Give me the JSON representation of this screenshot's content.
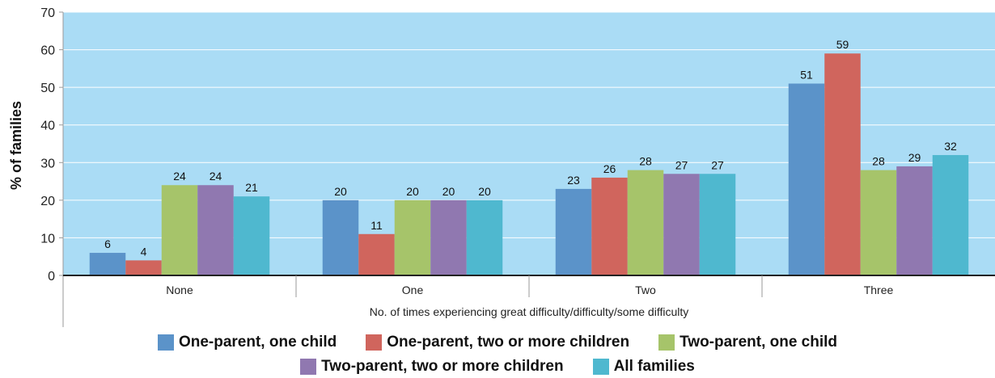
{
  "chart_data": {
    "type": "bar",
    "categories": [
      "None",
      "One",
      "Two",
      "Three"
    ],
    "series": [
      {
        "name": "One-parent, one child",
        "values": [
          6,
          20,
          23,
          51
        ],
        "color": "#5b93c9"
      },
      {
        "name": "One-parent, two or more children",
        "values": [
          4,
          11,
          26,
          59
        ],
        "color": "#d0655d"
      },
      {
        "name": "Two-parent, one child",
        "values": [
          24,
          20,
          28,
          28
        ],
        "color": "#a6c46a"
      },
      {
        "name": "Two-parent, two or more children",
        "values": [
          24,
          20,
          27,
          29
        ],
        "color": "#9078b0"
      },
      {
        "name": "All families",
        "values": [
          21,
          20,
          27,
          32
        ],
        "color": "#4fb8cf"
      }
    ],
    "data_labels": [
      [
        "6",
        "20",
        "23",
        "51"
      ],
      [
        "4",
        "11",
        "26",
        "59"
      ],
      [
        "24",
        "20",
        "28",
        "28"
      ],
      [
        "24",
        "20",
        "27",
        "29"
      ],
      [
        "21",
        "20",
        "27",
        "32"
      ]
    ],
    "ylabel": "% of families",
    "xlabel": "No. of times experiencing great difficulty/difficulty/some difficulty",
    "ylim": [
      0,
      70
    ],
    "yticks": [
      0,
      10,
      20,
      30,
      40,
      50,
      60,
      70
    ],
    "grid": true,
    "legend_position": "bottom",
    "background_color": "#aadcf5",
    "grid_color": "#ffffff"
  }
}
